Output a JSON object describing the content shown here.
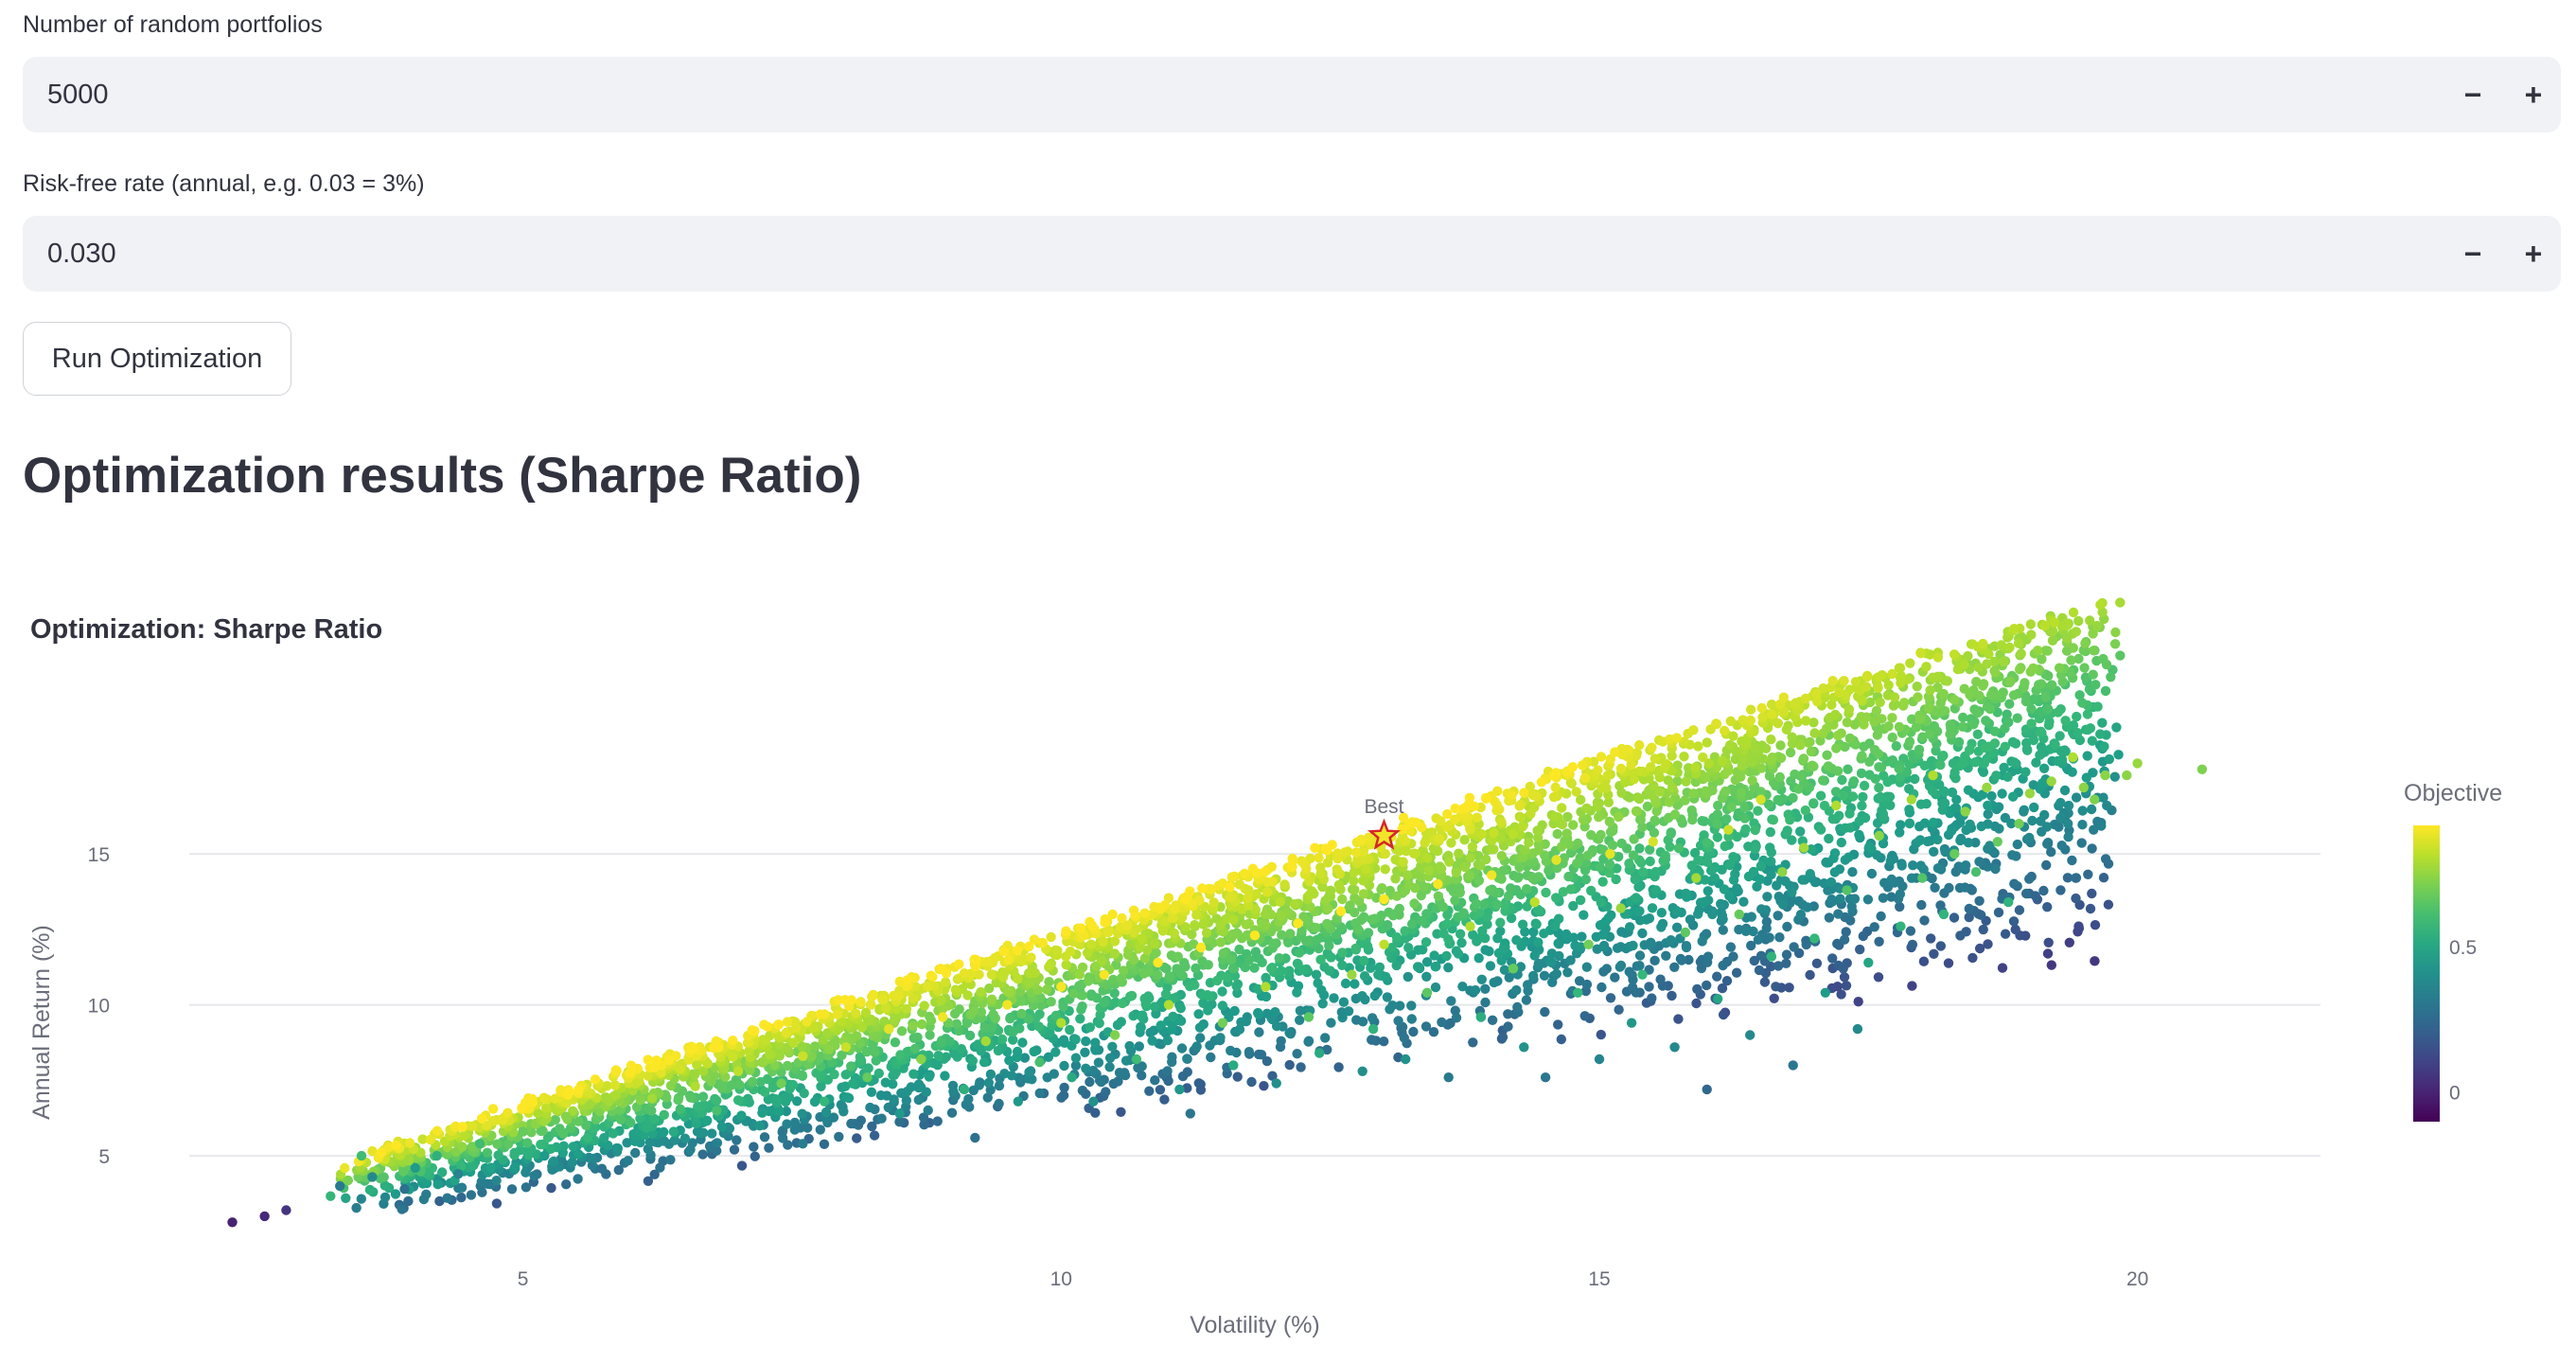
{
  "inputs": {
    "portfolios": {
      "label": "Number of random portfolios",
      "value": "5000",
      "minus": "−",
      "plus": "+"
    },
    "risk_free": {
      "label": "Risk-free rate (annual, e.g. 0.03 = 3%)",
      "value": "0.030",
      "minus": "−",
      "plus": "+"
    }
  },
  "run_button": {
    "label": "Run Optimization"
  },
  "results": {
    "heading": "Optimization results (Sharpe Ratio)"
  },
  "chart_data": {
    "type": "scatter",
    "title": "Optimization: Sharpe Ratio",
    "xlabel": "Volatility (%)",
    "ylabel": "Annual Return (%)",
    "xlim": [
      1.9,
      21.7
    ],
    "ylim": [
      1.9,
      18.2
    ],
    "xticks": [
      5,
      10,
      15,
      20
    ],
    "yticks": [
      5,
      10,
      15
    ],
    "grid": "horizontal",
    "colorbar": {
      "title": "Objective",
      "min": -0.1,
      "max": 0.92,
      "ticks": [
        0,
        0.5
      ],
      "colorscale": "viridis"
    },
    "best": {
      "label": "Best",
      "x": 13.0,
      "y": 15.6
    },
    "point_count": 5000,
    "points": [
      [
        2.3,
        2.8,
        0.0
      ],
      [
        2.6,
        3.0,
        0.02
      ],
      [
        2.8,
        3.2,
        0.05
      ],
      [
        3.3,
        4.0,
        0.32
      ],
      [
        3.6,
        4.3,
        0.38
      ],
      [
        3.9,
        3.9,
        0.28
      ],
      [
        4.0,
        4.6,
        0.45
      ],
      [
        3.5,
        5.0,
        0.6
      ],
      [
        4.2,
        5.0,
        0.55
      ],
      [
        4.4,
        4.4,
        0.36
      ],
      [
        4.6,
        5.4,
        0.6
      ],
      [
        5.0,
        5.8,
        0.68
      ],
      [
        5.2,
        5.0,
        0.45
      ],
      [
        5.4,
        6.3,
        0.73
      ],
      [
        5.6,
        5.6,
        0.58
      ],
      [
        5.8,
        6.8,
        0.78
      ],
      [
        6.0,
        6.1,
        0.62
      ],
      [
        6.2,
        6.9,
        0.78
      ],
      [
        6.4,
        5.8,
        0.52
      ],
      [
        6.6,
        7.3,
        0.8
      ],
      [
        6.8,
        6.5,
        0.62
      ],
      [
        7.0,
        7.8,
        0.82
      ],
      [
        7.2,
        6.0,
        0.44
      ],
      [
        7.4,
        7.4,
        0.7
      ],
      [
        7.6,
        8.3,
        0.84
      ],
      [
        7.6,
        5.4,
        0.33
      ],
      [
        7.8,
        6.8,
        0.58
      ],
      [
        8.0,
        8.6,
        0.84
      ],
      [
        8.2,
        7.6,
        0.68
      ],
      [
        8.4,
        9.2,
        0.88
      ],
      [
        8.5,
        6.4,
        0.45
      ],
      [
        8.7,
        8.2,
        0.74
      ],
      [
        8.9,
        9.6,
        0.9
      ],
      [
        9.1,
        7.2,
        0.55
      ],
      [
        9.2,
        5.6,
        0.28
      ],
      [
        9.3,
        8.8,
        0.78
      ],
      [
        9.5,
        10.0,
        0.9
      ],
      [
        9.6,
        6.8,
        0.44
      ],
      [
        9.8,
        8.1,
        0.62
      ],
      [
        10.0,
        10.6,
        0.91
      ],
      [
        10.0,
        9.4,
        0.8
      ],
      [
        10.1,
        7.6,
        0.52
      ],
      [
        10.3,
        6.8,
        0.42
      ],
      [
        10.4,
        11.0,
        0.91
      ],
      [
        10.5,
        9.0,
        0.72
      ],
      [
        10.7,
        8.2,
        0.6
      ],
      [
        10.9,
        11.4,
        0.92
      ],
      [
        11.0,
        10.0,
        0.8
      ],
      [
        11.1,
        7.2,
        0.44
      ],
      [
        11.2,
        6.4,
        0.3
      ],
      [
        11.3,
        11.9,
        0.92
      ],
      [
        11.5,
        9.4,
        0.7
      ],
      [
        11.6,
        8.0,
        0.52
      ],
      [
        11.8,
        12.3,
        0.92
      ],
      [
        11.9,
        10.6,
        0.8
      ],
      [
        12.0,
        7.4,
        0.4
      ],
      [
        12.2,
        12.7,
        0.92
      ],
      [
        12.3,
        9.6,
        0.66
      ],
      [
        12.4,
        8.4,
        0.52
      ],
      [
        12.6,
        13.1,
        0.92
      ],
      [
        12.7,
        11.0,
        0.76
      ],
      [
        12.8,
        7.8,
        0.4
      ],
      [
        12.9,
        9.2,
        0.56
      ],
      [
        13.0,
        13.5,
        0.92
      ],
      [
        13.0,
        12.0,
        0.82
      ],
      [
        13.2,
        8.2,
        0.42
      ],
      [
        13.4,
        10.4,
        0.66
      ],
      [
        13.5,
        14.0,
        0.91
      ],
      [
        13.6,
        7.6,
        0.32
      ],
      [
        13.8,
        12.6,
        0.8
      ],
      [
        13.9,
        9.6,
        0.54
      ],
      [
        14.0,
        14.3,
        0.9
      ],
      [
        14.2,
        11.2,
        0.68
      ],
      [
        14.3,
        8.6,
        0.42
      ],
      [
        14.4,
        13.4,
        0.82
      ],
      [
        14.5,
        7.6,
        0.3
      ],
      [
        14.6,
        14.8,
        0.88
      ],
      [
        14.8,
        10.4,
        0.58
      ],
      [
        14.9,
        12.0,
        0.7
      ],
      [
        15.0,
        8.2,
        0.36
      ],
      [
        15.1,
        15.0,
        0.88
      ],
      [
        15.2,
        13.2,
        0.76
      ],
      [
        15.3,
        9.4,
        0.44
      ],
      [
        15.4,
        11.0,
        0.58
      ],
      [
        15.5,
        15.4,
        0.86
      ],
      [
        15.7,
        8.6,
        0.38
      ],
      [
        15.8,
        12.4,
        0.66
      ],
      [
        15.9,
        14.2,
        0.78
      ],
      [
        16.0,
        7.2,
        0.24
      ],
      [
        16.1,
        10.2,
        0.5
      ],
      [
        16.2,
        15.8,
        0.84
      ],
      [
        16.3,
        13.0,
        0.68
      ],
      [
        16.4,
        9.0,
        0.38
      ],
      [
        16.5,
        16.8,
        0.86
      ],
      [
        16.6,
        11.6,
        0.56
      ],
      [
        16.7,
        14.4,
        0.74
      ],
      [
        16.8,
        8.0,
        0.3
      ],
      [
        16.9,
        15.2,
        0.78
      ],
      [
        17.0,
        12.2,
        0.58
      ],
      [
        17.1,
        10.4,
        0.46
      ],
      [
        17.2,
        16.6,
        0.8
      ],
      [
        17.3,
        13.8,
        0.64
      ],
      [
        17.4,
        9.2,
        0.38
      ],
      [
        17.5,
        11.4,
        0.5
      ],
      [
        17.6,
        15.6,
        0.74
      ],
      [
        17.8,
        12.6,
        0.56
      ],
      [
        17.9,
        16.8,
        0.78
      ],
      [
        18.0,
        14.2,
        0.64
      ],
      [
        18.1,
        17.6,
        0.8
      ],
      [
        18.2,
        13.0,
        0.56
      ],
      [
        18.3,
        15.0,
        0.68
      ],
      [
        18.4,
        16.4,
        0.74
      ],
      [
        18.5,
        14.4,
        0.62
      ],
      [
        18.6,
        17.2,
        0.76
      ],
      [
        18.7,
        15.4,
        0.68
      ],
      [
        18.8,
        13.4,
        0.56
      ],
      [
        18.9,
        16.0,
        0.7
      ],
      [
        19.0,
        17.0,
        0.76
      ],
      [
        19.2,
        17.4,
        0.76
      ],
      [
        19.4,
        18.2,
        0.8
      ],
      [
        19.5,
        17.2,
        0.74
      ],
      [
        19.6,
        16.8,
        0.72
      ],
      [
        19.7,
        17.6,
        0.74
      ],
      [
        19.9,
        17.6,
        0.74
      ],
      [
        20.0,
        18.0,
        0.76
      ],
      [
        20.6,
        17.8,
        0.72
      ]
    ]
  }
}
